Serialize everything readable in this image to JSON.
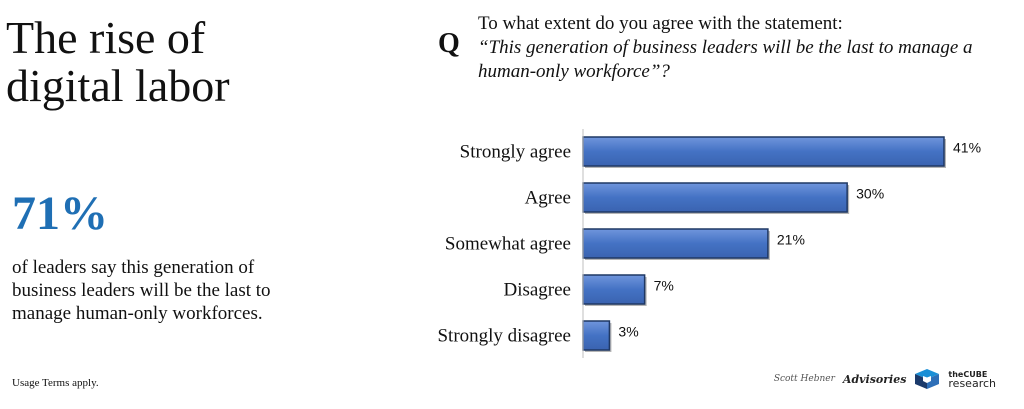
{
  "left": {
    "title_line1": "The rise of",
    "title_line2": "digital labor",
    "stat_value": "71%",
    "stat_text": "of leaders say this generation of business leaders will be the last to manage human-only workforces.",
    "usage": "Usage Terms apply."
  },
  "question": {
    "letter": "Q",
    "line": "To what extent do you agree with the statement:",
    "quote": "“This generation of business leaders will be the last to manage a human-only workforce”?"
  },
  "footer": {
    "signature": "Scott Hebner",
    "advisories": "Advisories",
    "cube_line1": "theCUBE",
    "cube_line2": "research"
  },
  "colors": {
    "bar": "#4472C4",
    "bar_border": "#1F3864",
    "stat": "#1F6FB4"
  },
  "chart_data": {
    "type": "bar",
    "orientation": "horizontal",
    "categories": [
      "Strongly agree",
      "Agree",
      "Somewhat agree",
      "Disagree",
      "Strongly disagree"
    ],
    "values": [
      41,
      30,
      21,
      7,
      3
    ],
    "value_labels": [
      "41%",
      "30%",
      "21%",
      "7%",
      "3%"
    ],
    "title": "",
    "xlabel": "",
    "ylabel": "",
    "xlim": [
      0,
      41
    ],
    "grid": false,
    "legend": "none"
  }
}
